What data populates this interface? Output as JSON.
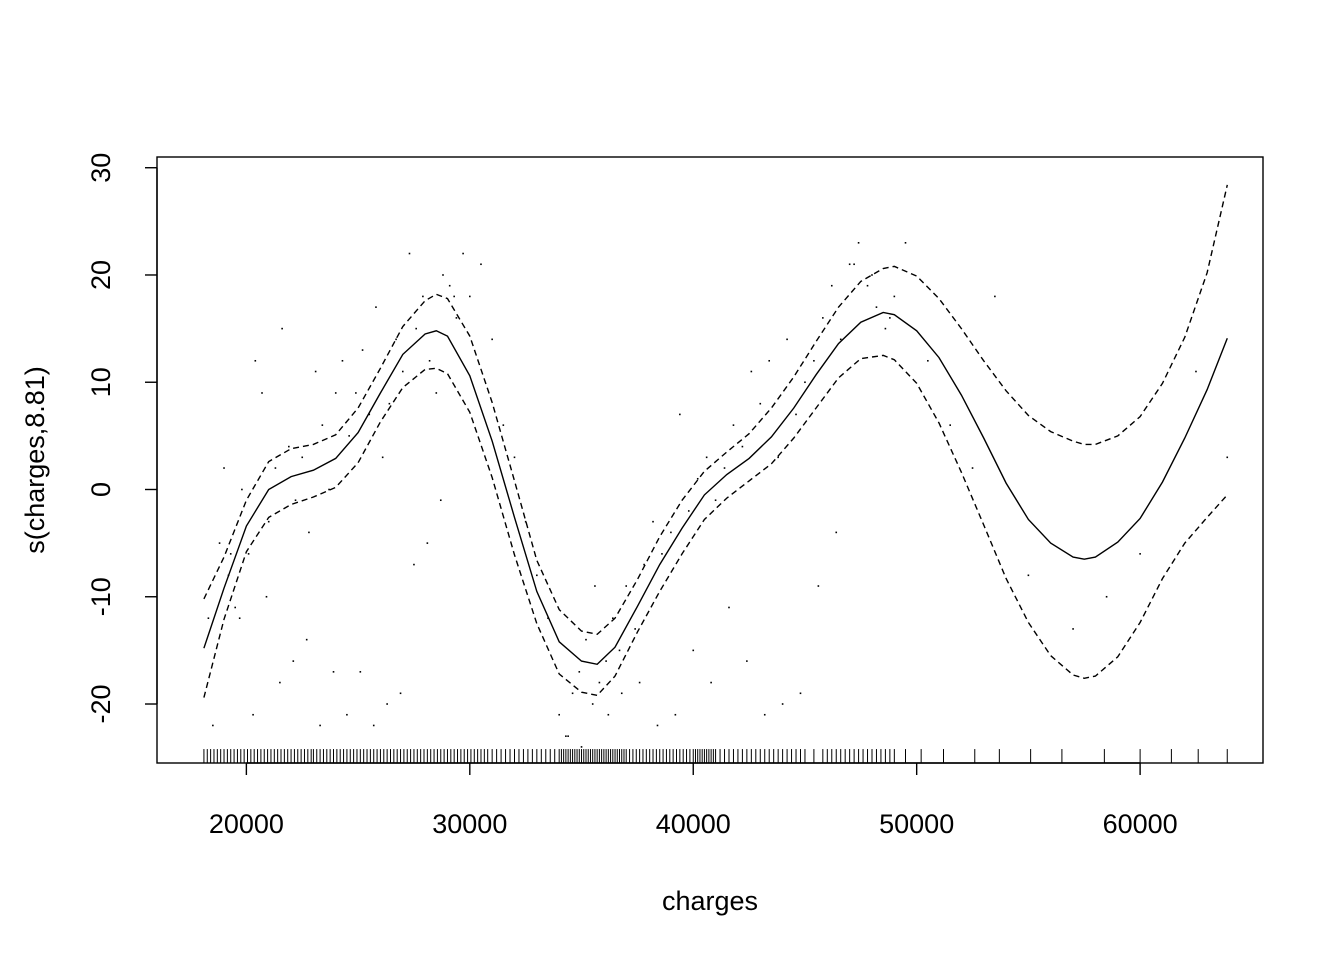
{
  "chart_data": {
    "type": "line",
    "title": "",
    "xlabel": "charges",
    "ylabel": "s(charges,8.81)",
    "xlim": [
      16000,
      65500
    ],
    "ylim": [
      -25.5,
      31
    ],
    "x_ticks": [
      20000,
      30000,
      40000,
      50000,
      60000
    ],
    "x_tick_labels": [
      "20000",
      "30000",
      "40000",
      "50000",
      "60000"
    ],
    "y_ticks": [
      -20,
      -10,
      0,
      10,
      20,
      30
    ],
    "y_tick_labels": [
      "-20",
      "-10",
      "0",
      "10",
      "20",
      "30"
    ],
    "grid": false,
    "legend": "none",
    "series": [
      {
        "style": "solid",
        "x": [
          18100,
          19000,
          20000,
          21000,
          22000,
          23000,
          24000,
          25000,
          26000,
          27000,
          28000,
          28500,
          29000,
          30000,
          31000,
          32000,
          33000,
          34000,
          35000,
          35700,
          36500,
          37500,
          38500,
          39500,
          40500,
          41500,
          42500,
          43500,
          44500,
          45500,
          46500,
          47500,
          48500,
          49000,
          50000,
          51000,
          52000,
          53000,
          54000,
          55000,
          56000,
          57000,
          57500,
          58000,
          59000,
          60000,
          61000,
          62000,
          63000,
          63900
        ],
        "y": [
          -14.8,
          -9.2,
          -3.4,
          0,
          1.2,
          1.8,
          2.9,
          5.3,
          9,
          12.6,
          14.5,
          14.8,
          14.3,
          10.6,
          4.5,
          -2.6,
          -9.5,
          -14.2,
          -16,
          -16.3,
          -14.7,
          -10.9,
          -7,
          -3.6,
          -0.5,
          1.4,
          2.9,
          4.9,
          7.6,
          10.7,
          13.6,
          15.6,
          16.5,
          16.3,
          14.8,
          12.3,
          8.8,
          4.8,
          0.6,
          -2.8,
          -5,
          -6.3,
          -6.5,
          -6.3,
          -4.9,
          -2.7,
          0.7,
          4.8,
          9.3,
          14.1
        ]
      },
      {
        "style": "dashed",
        "x": [
          18100,
          19000,
          20000,
          21000,
          22000,
          23000,
          24000,
          25000,
          26000,
          27000,
          28000,
          28500,
          29000,
          30000,
          31000,
          32000,
          33000,
          34000,
          35000,
          35700,
          36500,
          37500,
          38500,
          39500,
          40500,
          41500,
          42500,
          43500,
          44500,
          45500,
          46500,
          47500,
          48500,
          49000,
          50000,
          51000,
          52000,
          53000,
          54000,
          55000,
          56000,
          57000,
          57500,
          58000,
          59000,
          60000,
          61000,
          62000,
          63000,
          63900
        ],
        "y": [
          -10.2,
          -6.3,
          -1,
          2.6,
          3.8,
          4.2,
          5.1,
          7.6,
          11.3,
          15.2,
          17.6,
          18.2,
          17.8,
          14.3,
          8.1,
          0.8,
          -6.6,
          -11.2,
          -13.2,
          -13.5,
          -12,
          -8.4,
          -4.4,
          -1,
          1.7,
          3.5,
          5.2,
          7.6,
          10.5,
          13.8,
          17,
          19.4,
          20.6,
          20.8,
          19.9,
          17.8,
          15,
          12,
          9.2,
          6.9,
          5.4,
          4.5,
          4.2,
          4.2,
          5,
          6.8,
          9.9,
          14.2,
          20.2,
          28.4
        ]
      },
      {
        "style": "dashed",
        "x": [
          18100,
          19000,
          20000,
          21000,
          22000,
          23000,
          24000,
          25000,
          26000,
          27000,
          28000,
          28500,
          29000,
          30000,
          31000,
          32000,
          33000,
          34000,
          35000,
          35700,
          36500,
          37500,
          38500,
          39500,
          40500,
          41500,
          42500,
          43500,
          44500,
          45500,
          46500,
          47500,
          48500,
          49000,
          50000,
          51000,
          52000,
          53000,
          54000,
          55000,
          56000,
          57000,
          57500,
          58000,
          59000,
          60000,
          61000,
          62000,
          63000,
          63900
        ],
        "y": [
          -19.4,
          -12.1,
          -5.8,
          -2.6,
          -1.4,
          -0.7,
          0.2,
          2.5,
          6.3,
          9.5,
          11.2,
          11.3,
          10.8,
          7.2,
          1.1,
          -6.1,
          -12.5,
          -17.2,
          -18.9,
          -19.2,
          -17.4,
          -13.3,
          -9.5,
          -6,
          -2.8,
          -0.8,
          0.8,
          2.4,
          4.8,
          7.6,
          10.4,
          12.2,
          12.5,
          12.1,
          9.9,
          6.2,
          1.6,
          -3.3,
          -8.3,
          -12.4,
          -15.5,
          -17.3,
          -17.6,
          -17.4,
          -15.6,
          -12.4,
          -8.3,
          -5,
          -2.6,
          -0.5
        ]
      }
    ],
    "residuals": {
      "x": [
        18300,
        18500,
        18800,
        19000,
        19200,
        19500,
        19800,
        20100,
        20400,
        20700,
        21000,
        21300,
        21600,
        21900,
        22200,
        22500,
        22800,
        23100,
        23400,
        23700,
        24000,
        24300,
        24600,
        24900,
        25200,
        25500,
        25800,
        26100,
        26400,
        26700,
        27000,
        27300,
        27600,
        27900,
        28200,
        28500,
        28800,
        29100,
        29400,
        29700,
        30000,
        30500,
        31000,
        31500,
        32000,
        32500,
        33000,
        33500,
        34000,
        34300,
        34600,
        34900,
        35200,
        35500,
        35800,
        36100,
        36400,
        36700,
        37000,
        37400,
        37800,
        38200,
        38600,
        39000,
        39400,
        39800,
        40200,
        40600,
        41000,
        41400,
        41800,
        42200,
        42600,
        43000,
        43400,
        43800,
        44200,
        44600,
        45000,
        45400,
        45800,
        46200,
        46600,
        47000,
        47400,
        47800,
        48200,
        48600,
        49000,
        49500,
        50500,
        51500,
        52500,
        53500,
        55000,
        57000,
        58500,
        60000,
        62500,
        63900,
        19300,
        19700,
        20300,
        20900,
        21500,
        22100,
        22700,
        23300,
        23900,
        24500,
        25100,
        25700,
        26300,
        26900,
        27500,
        28100,
        28700,
        29300,
        34400,
        35000,
        35600,
        36200,
        36800,
        37600,
        38400,
        39200,
        40000,
        40800,
        41600,
        42400,
        43200,
        44000,
        44800,
        45600,
        46400,
        47200,
        48000,
        48800
      ],
      "y": [
        -12,
        -22,
        -5,
        2,
        -8,
        -11,
        0,
        -6,
        12,
        9,
        -3,
        2,
        15,
        4,
        -1,
        3,
        -4,
        11,
        6,
        0,
        9,
        12,
        5,
        9,
        13,
        7,
        17,
        3,
        8,
        14,
        11,
        22,
        15,
        18,
        12,
        9,
        20,
        19,
        16,
        22,
        18,
        21,
        14,
        6,
        3,
        -3,
        -8,
        -12,
        -21,
        -23,
        -19,
        -17,
        -14,
        -20,
        -18,
        -16,
        -12,
        -15,
        -9,
        -13,
        -7,
        -3,
        -6,
        -4,
        7,
        -2,
        1,
        3,
        -1,
        2,
        6,
        4,
        11,
        8,
        12,
        3,
        14,
        7,
        10,
        12,
        16,
        19,
        14,
        21,
        23,
        19,
        17,
        15,
        18,
        23,
        12,
        6,
        2,
        18,
        -8,
        -13,
        -10,
        -6,
        11,
        3,
        -6,
        -12,
        -21,
        -10,
        -18,
        -16,
        -14,
        -22,
        -17,
        -21,
        -17,
        -22,
        -20,
        -19,
        -7,
        -5,
        -1,
        18,
        -23,
        -24,
        -9,
        -21,
        -19,
        -18,
        -22,
        -21,
        -15,
        -18,
        -11,
        -16,
        -21,
        -20,
        -19,
        -9,
        -4,
        21,
        20,
        16
      ]
    },
    "rug": [
      18100,
      18250,
      18400,
      18550,
      18700,
      18850,
      19000,
      19150,
      19300,
      19450,
      19600,
      19750,
      19900,
      20050,
      20200,
      20350,
      20500,
      20650,
      20800,
      20950,
      21100,
      21250,
      21400,
      21550,
      21700,
      21850,
      22000,
      22150,
      22300,
      22450,
      22600,
      22750,
      22900,
      23000,
      23150,
      23300,
      23450,
      23600,
      23750,
      23900,
      24050,
      24200,
      24350,
      24500,
      24650,
      24800,
      24950,
      25100,
      25250,
      25400,
      25550,
      25700,
      25850,
      26000,
      26150,
      26300,
      26450,
      26600,
      26750,
      26900,
      27050,
      27200,
      27350,
      27500,
      27650,
      27800,
      27950,
      28100,
      28250,
      28400,
      28550,
      28700,
      28850,
      29000,
      29150,
      29300,
      29450,
      29600,
      29750,
      29900,
      30050,
      30200,
      30350,
      30500,
      30650,
      30800,
      31000,
      31200,
      31400,
      31600,
      31800,
      32000,
      32200,
      32400,
      32600,
      32800,
      33000,
      33200,
      33400,
      33600,
      33800,
      34000,
      34100,
      34200,
      34300,
      34400,
      34500,
      34600,
      34700,
      34800,
      34900,
      35000,
      35100,
      35200,
      35300,
      35400,
      35500,
      35600,
      35700,
      35800,
      35900,
      36000,
      36100,
      36200,
      36300,
      36400,
      36500,
      36600,
      36700,
      36800,
      36900,
      37000,
      37150,
      37300,
      37450,
      37600,
      37750,
      37900,
      38050,
      38200,
      38350,
      38500,
      38650,
      38800,
      38950,
      39100,
      39250,
      39400,
      39550,
      39700,
      39850,
      40000,
      40100,
      40200,
      40300,
      40400,
      40500,
      40600,
      40700,
      40800,
      40900,
      41000,
      41200,
      41400,
      41600,
      41800,
      42000,
      42200,
      42400,
      42600,
      42800,
      43000,
      43200,
      43400,
      43600,
      43800,
      44000,
      44200,
      44400,
      44600,
      44800,
      45000,
      45400,
      45800,
      46000,
      46200,
      46400,
      46600,
      46800,
      47000,
      47200,
      47400,
      47600,
      47800,
      48000,
      48200,
      48400,
      48600,
      48800,
      49000,
      49500,
      50200,
      51200,
      52600,
      53700,
      55100,
      56500,
      58400,
      60000,
      61400,
      62600,
      63900
    ]
  }
}
